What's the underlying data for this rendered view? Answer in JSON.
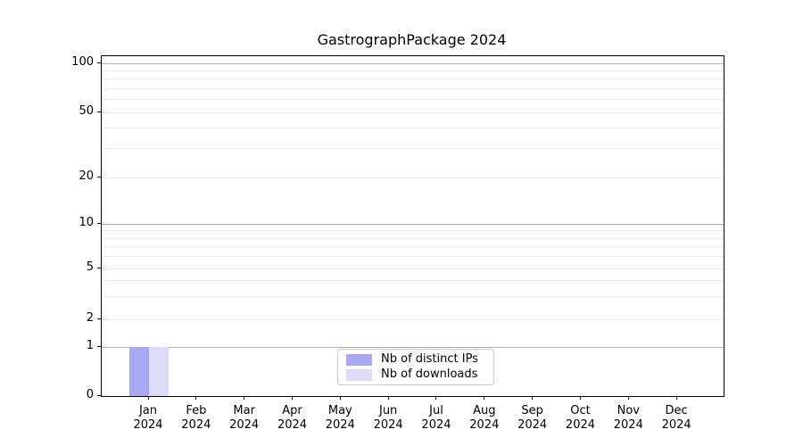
{
  "chart_data": {
    "type": "bar",
    "title": "GastrographPackage 2024",
    "categories": [
      [
        "Jan",
        "2024"
      ],
      [
        "Feb",
        "2024"
      ],
      [
        "Mar",
        "2024"
      ],
      [
        "Apr",
        "2024"
      ],
      [
        "May",
        "2024"
      ],
      [
        "Jun",
        "2024"
      ],
      [
        "Jul",
        "2024"
      ],
      [
        "Aug",
        "2024"
      ],
      [
        "Sep",
        "2024"
      ],
      [
        "Oct",
        "2024"
      ],
      [
        "Nov",
        "2024"
      ],
      [
        "Dec",
        "2024"
      ]
    ],
    "series": [
      {
        "name": "Nb of distinct IPs",
        "color": "#a9a9f2",
        "values": [
          1,
          0,
          0,
          0,
          0,
          0,
          0,
          0,
          0,
          0,
          0,
          0
        ]
      },
      {
        "name": "Nb of downloads",
        "color": "#dcdcf8",
        "values": [
          1,
          0,
          0,
          0,
          0,
          0,
          0,
          0,
          0,
          0,
          0,
          0
        ]
      }
    ],
    "xlabel": "",
    "ylabel": "",
    "y_scale": "symlog",
    "y_ticks": [
      0,
      1,
      2,
      5,
      10,
      20,
      50,
      100
    ],
    "ylim": [
      0,
      110
    ],
    "grid": {
      "major": true,
      "minor": true
    },
    "legend": {
      "position": "lower center"
    },
    "colors": {
      "grid_major": "#b2b2b2",
      "grid_minor": "#e8e8e8",
      "spine": "#000000",
      "text": "#000000",
      "background": "#ffffff"
    }
  }
}
